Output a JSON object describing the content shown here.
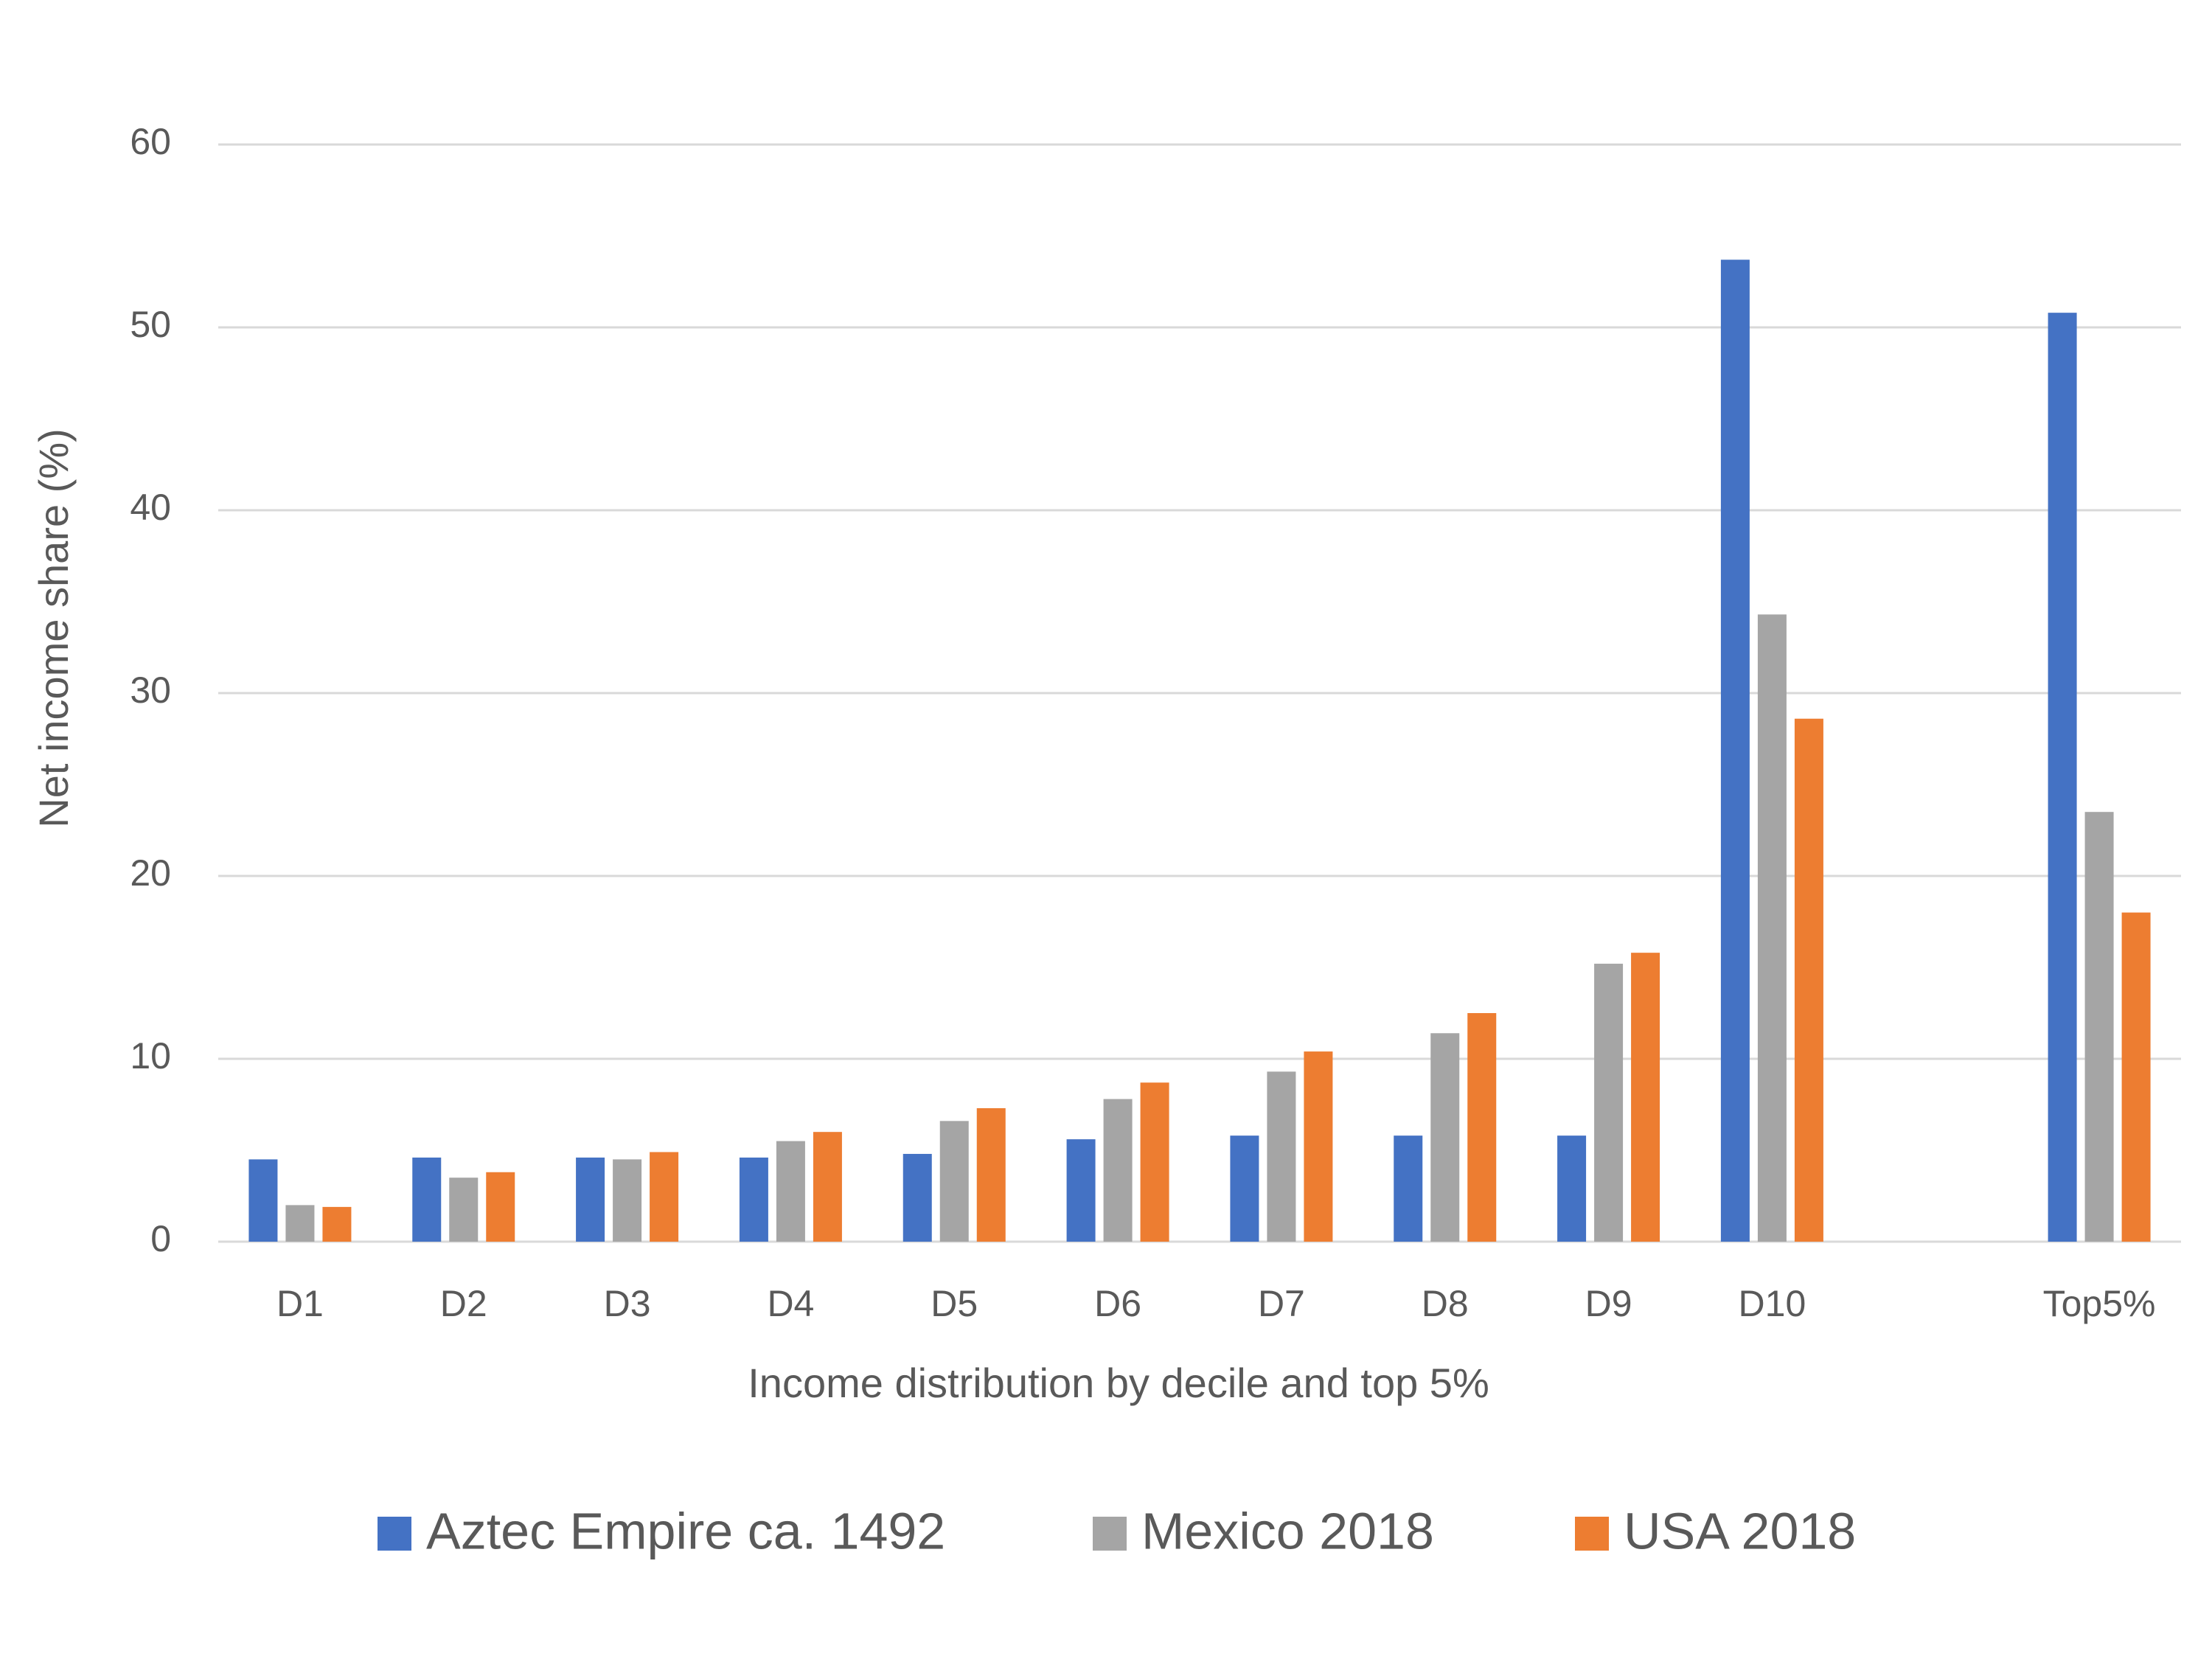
{
  "chart_data": {
    "type": "bar",
    "x_label": "Income distribution by decile and top 5%",
    "y_label": "Net income share (%)",
    "categories": [
      "D1",
      "D2",
      "D3",
      "D4",
      "D5",
      "D6",
      "D7",
      "D8",
      "D9",
      "D10",
      null,
      "Top5%"
    ],
    "series": [
      {
        "name": "Aztec Empire ca. 1492",
        "color": "#4472c4",
        "values": [
          4.5,
          4.6,
          4.6,
          4.6,
          4.8,
          5.6,
          5.8,
          5.8,
          5.8,
          53.7,
          null,
          50.8
        ]
      },
      {
        "name": "Mexico 2018",
        "color": "#a5a5a5",
        "values": [
          2.0,
          3.5,
          4.5,
          5.5,
          6.6,
          7.8,
          9.3,
          11.4,
          15.2,
          34.3,
          null,
          23.5
        ]
      },
      {
        "name": "USA 2018",
        "color": "#ed7d31",
        "values": [
          1.9,
          3.8,
          4.9,
          6.0,
          7.3,
          8.7,
          10.4,
          12.5,
          15.8,
          28.6,
          null,
          18.0
        ]
      }
    ],
    "ylim": [
      0,
      60
    ],
    "yticks": [
      0,
      10,
      20,
      30,
      40,
      50,
      60
    ],
    "grid": true,
    "legend": "bottom"
  }
}
